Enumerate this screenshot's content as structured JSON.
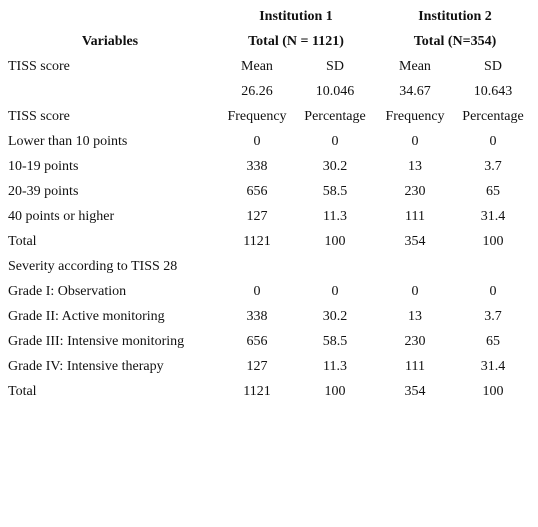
{
  "table": {
    "header": {
      "groups": [
        "Institution 1",
        "Institution 2"
      ],
      "variables": "Variables",
      "totals": [
        "Total (N = 1121)",
        "Total (N=354)"
      ]
    },
    "rows": [
      {
        "label": "TISS score",
        "cells": [
          "Mean",
          "SD",
          "Mean",
          "SD"
        ]
      },
      {
        "cells": [
          "26.26",
          "10.046",
          "34.67",
          "10.643"
        ]
      },
      {
        "label": "TISS score",
        "cells": [
          "Frequency",
          "Percentage",
          "Frequency",
          "Percentage"
        ]
      },
      {
        "label": "Lower than 10 points",
        "cells": [
          "0",
          "0",
          "0",
          "0"
        ]
      },
      {
        "label": "10-19 points",
        "cells": [
          "338",
          "30.2",
          "13",
          "3.7"
        ]
      },
      {
        "label": "20-39 points",
        "cells": [
          "656",
          "58.5",
          "230",
          "65"
        ]
      },
      {
        "label": "40 points or higher",
        "cells": [
          "127",
          "11.3",
          "111",
          "31.4"
        ]
      },
      {
        "label": "Total",
        "cells": [
          "1121",
          "100",
          "354",
          "100"
        ]
      },
      {
        "label": "Severity according to TISS 28"
      },
      {
        "label": "Grade I: Observation",
        "cells": [
          "0",
          "0",
          "0",
          "0"
        ]
      },
      {
        "label": "Grade II: Active monitoring",
        "cells": [
          "338",
          "30.2",
          "13",
          "3.7"
        ]
      },
      {
        "label": "Grade III: Intensive monitoring",
        "cells": [
          "656",
          "58.5",
          "230",
          "65"
        ]
      },
      {
        "label": "Grade IV: Intensive therapy",
        "cells": [
          "127",
          "11.3",
          "111",
          "31.4"
        ]
      },
      {
        "label": "Total",
        "cells": [
          "1121",
          "100",
          "354",
          "100"
        ]
      }
    ]
  }
}
